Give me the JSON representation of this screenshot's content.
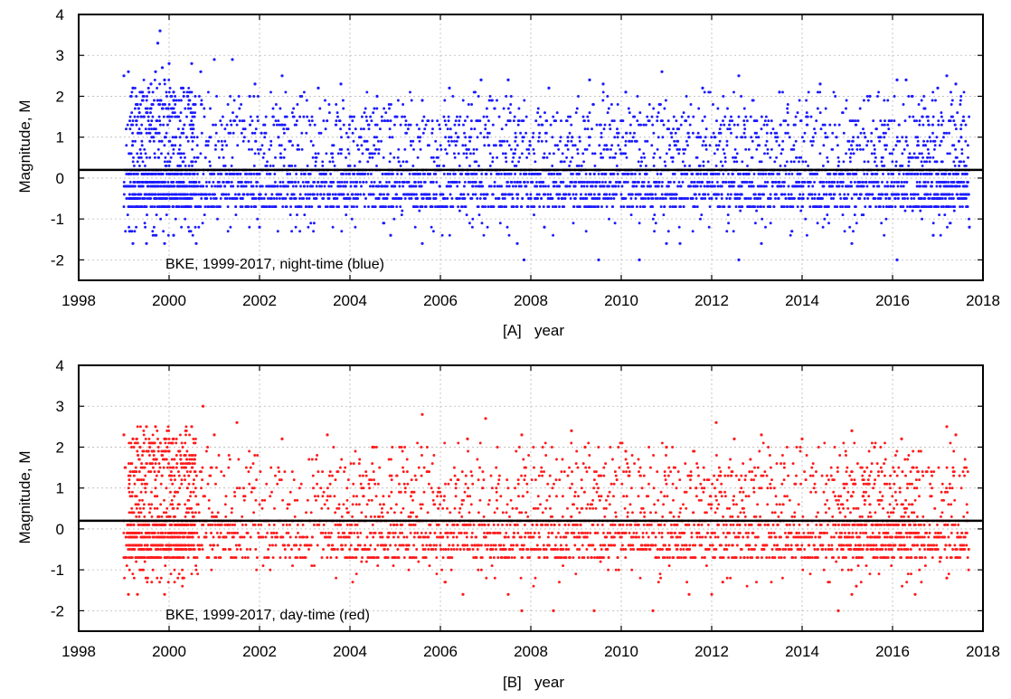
{
  "chart_data": [
    {
      "type": "scatter",
      "panel": "A",
      "xlabel": "[A]   year",
      "ylabel": "Magnitude, M",
      "annotation": "BKE, 1999-2017, night-time (blue)",
      "xlim": [
        1998,
        2018
      ],
      "ylim": [
        -2.5,
        4
      ],
      "x_ticks": [
        1998,
        2000,
        2002,
        2004,
        2006,
        2008,
        2010,
        2012,
        2014,
        2016,
        2018
      ],
      "y_ticks": [
        -2,
        -1,
        0,
        1,
        2,
        3,
        4
      ],
      "grid": true,
      "reference_line_y": 0.2,
      "series": [
        {
          "color": "#1a1aff",
          "points": [
            [
              1999.0,
              2.5
            ],
            [
              1999.1,
              2.6
            ],
            [
              1999.2,
              2.2
            ],
            [
              1999.3,
              1.8
            ],
            [
              1999.5,
              1.6
            ],
            [
              1999.6,
              2.3
            ],
            [
              1999.7,
              2.6
            ],
            [
              1999.75,
              3.3
            ],
            [
              1999.8,
              3.6
            ],
            [
              1999.85,
              2.7
            ],
            [
              1999.9,
              2.4
            ],
            [
              2000.0,
              2.8
            ],
            [
              2000.1,
              2.1
            ],
            [
              2000.3,
              2.2
            ],
            [
              2000.5,
              2.8
            ],
            [
              2000.7,
              2.6
            ],
            [
              2001.0,
              2.9
            ],
            [
              2001.4,
              2.9
            ],
            [
              2001.9,
              2.3
            ],
            [
              2002.5,
              2.5
            ],
            [
              2003.3,
              2.2
            ],
            [
              2003.8,
              2.3
            ],
            [
              2004.6,
              2.0
            ],
            [
              2005.6,
              1.9
            ],
            [
              2006.2,
              2.2
            ],
            [
              2006.9,
              2.4
            ],
            [
              2007.5,
              2.4
            ],
            [
              2008.4,
              2.2
            ],
            [
              2009.3,
              2.4
            ],
            [
              2009.6,
              2.3
            ],
            [
              2010.1,
              2.1
            ],
            [
              2010.9,
              2.6
            ],
            [
              2011.8,
              2.2
            ],
            [
              2012.6,
              2.5
            ],
            [
              2013.5,
              2.1
            ],
            [
              2014.4,
              2.3
            ],
            [
              2015.5,
              2.0
            ],
            [
              2016.1,
              2.4
            ],
            [
              2016.3,
              2.4
            ],
            [
              2017.0,
              2.2
            ],
            [
              2017.2,
              2.5
            ],
            [
              2017.4,
              2.3
            ],
            [
              1999.2,
              -1.6
            ],
            [
              1999.5,
              -1.6
            ],
            [
              1999.9,
              -1.6
            ],
            [
              2000.1,
              -1.4
            ],
            [
              2000.6,
              -1.6
            ],
            [
              2002.0,
              -1.2
            ],
            [
              2004.9,
              -1.4
            ],
            [
              2005.6,
              -1.6
            ],
            [
              2007.7,
              -1.6
            ],
            [
              2007.85,
              -2.0
            ],
            [
              2008.3,
              -1.2
            ],
            [
              2009.5,
              -2.0
            ],
            [
              2010.4,
              -2.0
            ],
            [
              2011.0,
              -1.6
            ],
            [
              2011.3,
              -1.6
            ],
            [
              2012.6,
              -2.0
            ],
            [
              2013.1,
              -1.6
            ],
            [
              2015.1,
              -1.6
            ],
            [
              2016.1,
              -2.0
            ],
            [
              2016.9,
              -1.4
            ],
            [
              2017.7,
              -1.2
            ]
          ]
        }
      ]
    },
    {
      "type": "scatter",
      "panel": "B",
      "xlabel": "[B]   year",
      "ylabel": "Magnitude, M",
      "annotation": "BKE, 1999-2017, day-time (red)",
      "xlim": [
        1998,
        2018
      ],
      "ylim": [
        -2.5,
        4
      ],
      "x_ticks": [
        1998,
        2000,
        2002,
        2004,
        2006,
        2008,
        2010,
        2012,
        2014,
        2016,
        2018
      ],
      "y_ticks": [
        -2,
        -1,
        0,
        1,
        2,
        3,
        4
      ],
      "grid": true,
      "reference_line_y": 0.2,
      "series": [
        {
          "color": "#ff1a1a",
          "points": [
            [
              1999.0,
              2.3
            ],
            [
              1999.2,
              2.2
            ],
            [
              1999.5,
              2.5
            ],
            [
              1999.7,
              2.5
            ],
            [
              1999.9,
              2.2
            ],
            [
              2000.1,
              2.2
            ],
            [
              2000.5,
              2.5
            ],
            [
              2000.75,
              3.0
            ],
            [
              2001.0,
              2.3
            ],
            [
              2001.5,
              2.6
            ],
            [
              2002.5,
              2.2
            ],
            [
              2003.5,
              2.3
            ],
            [
              2004.5,
              2.0
            ],
            [
              2005.6,
              2.8
            ],
            [
              2006.6,
              2.2
            ],
            [
              2007.0,
              2.7
            ],
            [
              2007.8,
              2.3
            ],
            [
              2008.9,
              2.4
            ],
            [
              2009.2,
              2.0
            ],
            [
              2010.1,
              1.9
            ],
            [
              2011.0,
              2.0
            ],
            [
              2012.1,
              2.6
            ],
            [
              2012.5,
              2.2
            ],
            [
              2013.1,
              2.3
            ],
            [
              2014.0,
              2.2
            ],
            [
              2015.1,
              2.4
            ],
            [
              2015.6,
              2.0
            ],
            [
              2016.2,
              2.2
            ],
            [
              2017.2,
              2.5
            ],
            [
              2017.4,
              2.3
            ],
            [
              1999.1,
              -1.6
            ],
            [
              1999.3,
              -1.6
            ],
            [
              1999.9,
              -1.6
            ],
            [
              2000.3,
              -1.2
            ],
            [
              2006.5,
              -1.6
            ],
            [
              2007.5,
              -1.6
            ],
            [
              2007.8,
              -2.0
            ],
            [
              2008.5,
              -2.0
            ],
            [
              2009.4,
              -2.0
            ],
            [
              2010.7,
              -2.0
            ],
            [
              2011.5,
              -1.6
            ],
            [
              2012.0,
              -1.6
            ],
            [
              2014.8,
              -2.0
            ],
            [
              2015.1,
              -1.6
            ],
            [
              2015.2,
              -1.4
            ],
            [
              2016.5,
              -1.6
            ],
            [
              2017.2,
              -1.2
            ]
          ]
        }
      ]
    }
  ]
}
